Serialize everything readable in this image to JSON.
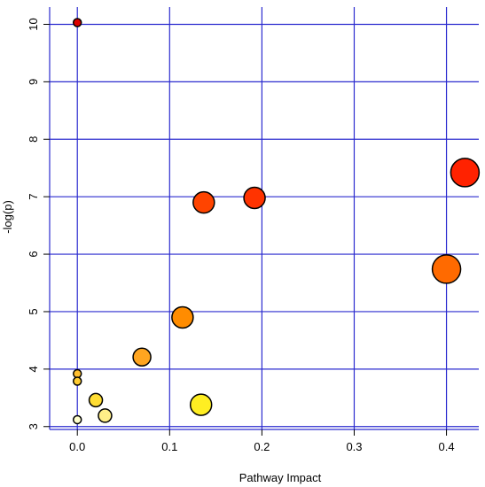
{
  "chart_data": {
    "type": "scatter",
    "title": "",
    "xlabel": "Pathway Impact",
    "ylabel": "-log(p)",
    "xlim": [
      -0.03,
      0.435
    ],
    "ylim": [
      2.95,
      10.3
    ],
    "x_ticks": [
      0.0,
      0.1,
      0.2,
      0.3,
      0.4
    ],
    "x_tick_labels": [
      "0.0",
      "0.1",
      "0.2",
      "0.3",
      "0.4"
    ],
    "y_ticks": [
      3,
      4,
      5,
      6,
      7,
      8,
      9,
      10
    ],
    "y_tick_labels": [
      "3",
      "4",
      "5",
      "6",
      "7",
      "8",
      "9",
      "10"
    ],
    "grid": true,
    "grid_color": "#2b2bcf",
    "legend": "none",
    "marker_encoding": "color from yellow (low -log(p)) to red (high -log(p)); size by pathway impact",
    "points": [
      {
        "x": 0.0,
        "y": 10.03,
        "color": "#dd0000",
        "size": "small"
      },
      {
        "x": 0.42,
        "y": 7.42,
        "color": "#ff2200",
        "size": "large"
      },
      {
        "x": 0.192,
        "y": 6.98,
        "color": "#ff3300",
        "size": "medium"
      },
      {
        "x": 0.137,
        "y": 6.9,
        "color": "#ff4400",
        "size": "medium"
      },
      {
        "x": 0.4,
        "y": 5.74,
        "color": "#ff6a00",
        "size": "large"
      },
      {
        "x": 0.114,
        "y": 4.9,
        "color": "#ff8c00",
        "size": "medium"
      },
      {
        "x": 0.07,
        "y": 4.21,
        "color": "#ffa520",
        "size": "medium-small"
      },
      {
        "x": 0.0,
        "y": 3.92,
        "color": "#ffbf30",
        "size": "small"
      },
      {
        "x": 0.0,
        "y": 3.79,
        "color": "#ffcc33",
        "size": "small"
      },
      {
        "x": 0.02,
        "y": 3.46,
        "color": "#ffdd33",
        "size": "small-medium"
      },
      {
        "x": 0.134,
        "y": 3.38,
        "color": "#ffee22",
        "size": "medium"
      },
      {
        "x": 0.03,
        "y": 3.19,
        "color": "#ffee88",
        "size": "small-medium"
      },
      {
        "x": 0.0,
        "y": 3.12,
        "color": "#ffffcc",
        "size": "small"
      }
    ]
  }
}
